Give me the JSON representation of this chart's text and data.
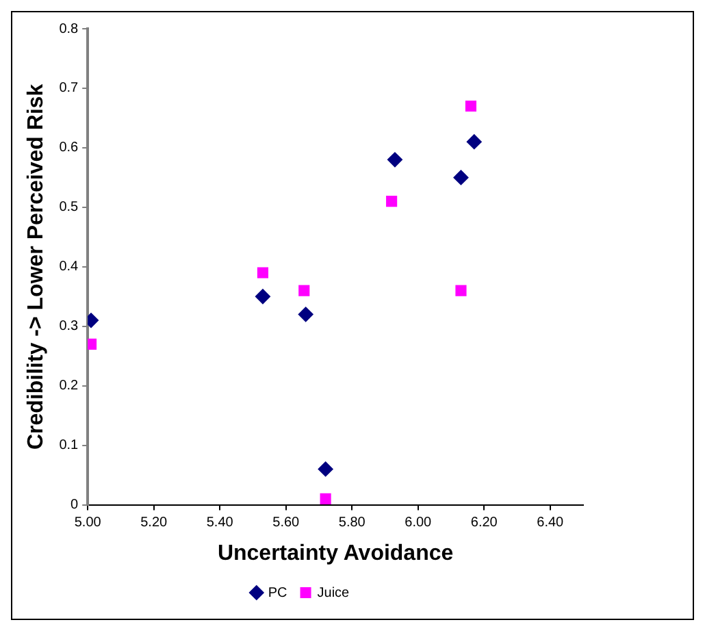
{
  "chart_data": {
    "type": "scatter",
    "xlabel": "Uncertainty Avoidance",
    "ylabel": "Credibility -> Lower Perceived Risk",
    "xlim": [
      5.0,
      6.5
    ],
    "xticks": [
      {
        "value": 5.0,
        "label": "5.00"
      },
      {
        "value": 5.2,
        "label": "5.20"
      },
      {
        "value": 5.4,
        "label": "5.40"
      },
      {
        "value": 5.6,
        "label": "5.60"
      },
      {
        "value": 5.8,
        "label": "5.80"
      },
      {
        "value": 6.0,
        "label": "6.00"
      },
      {
        "value": 6.2,
        "label": "6.20"
      },
      {
        "value": 6.4,
        "label": "6.40"
      }
    ],
    "ylim": [
      0,
      0.8
    ],
    "yticks": [
      0,
      0.1,
      0.2,
      0.3,
      0.4,
      0.5,
      0.6,
      0.7,
      0.8
    ],
    "grid": false,
    "legend": "bottom",
    "series": [
      {
        "name": "PC",
        "color": "#000080",
        "marker": "diamond",
        "x": [
          5.01,
          5.53,
          5.66,
          5.72,
          5.93,
          6.13,
          6.17
        ],
        "values": [
          0.31,
          0.35,
          0.32,
          0.06,
          0.58,
          0.55,
          0.61
        ]
      },
      {
        "name": "Juice",
        "color": "#ff00ff",
        "marker": "square",
        "x": [
          5.01,
          5.53,
          5.655,
          5.72,
          5.92,
          6.13,
          6.16
        ],
        "values": [
          0.27,
          0.39,
          0.36,
          0.01,
          0.51,
          0.36,
          0.67
        ]
      }
    ]
  }
}
